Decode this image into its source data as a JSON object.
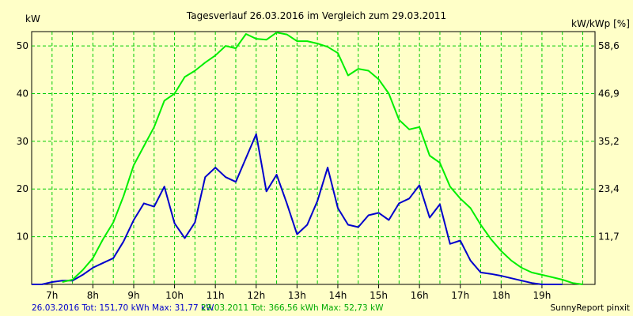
{
  "chart_data": {
    "type": "line",
    "title": "Tagesverlauf 26.03.2016 im Vergleich zum 29.03.2011",
    "ylabel_left": "kW",
    "ylabel_right": "kW/kWp [%]",
    "x_ticks": [
      "7h",
      "8h",
      "9h",
      "10h",
      "11h",
      "12h",
      "13h",
      "14h",
      "15h",
      "16h",
      "17h",
      "18h",
      "19h"
    ],
    "y_ticks_left": [
      "10",
      "20",
      "30",
      "40",
      "50"
    ],
    "y_ticks_right": [
      "11,7",
      "23,4",
      "35,2",
      "46,9",
      "58,6"
    ],
    "xlim": [
      6.5,
      20.3
    ],
    "ylim": [
      0,
      53
    ],
    "grid": true,
    "series": [
      {
        "name": "26.03.2016",
        "color": "#0000CC",
        "x": [
          6.5,
          6.75,
          7.0,
          7.25,
          7.5,
          7.75,
          8.0,
          8.25,
          8.5,
          8.75,
          9.0,
          9.25,
          9.5,
          9.75,
          10.0,
          10.25,
          10.5,
          10.75,
          11.0,
          11.25,
          11.5,
          11.75,
          12.0,
          12.25,
          12.5,
          12.75,
          13.0,
          13.25,
          13.5,
          13.75,
          14.0,
          14.25,
          14.5,
          14.75,
          15.0,
          15.25,
          15.5,
          15.75,
          16.0,
          16.25,
          16.5,
          16.75,
          17.0,
          17.25,
          17.5,
          17.75,
          18.0,
          18.25,
          18.5,
          18.75,
          19.0,
          19.25,
          19.5
        ],
        "y": [
          0,
          0,
          0.5,
          0.8,
          0.8,
          2.0,
          3.5,
          4.5,
          5.5,
          9.0,
          13.5,
          17.0,
          16.3,
          20.5,
          12.8,
          9.7,
          13.0,
          22.5,
          24.5,
          22.5,
          21.5,
          26.5,
          31.5,
          19.5,
          23.0,
          17.0,
          10.5,
          12.5,
          17.5,
          24.5,
          16.0,
          12.5,
          12.0,
          14.5,
          15.0,
          13.5,
          17.0,
          18.0,
          20.8,
          14.0,
          16.8,
          8.5,
          9.2,
          5.0,
          2.5,
          2.2,
          1.8,
          1.3,
          0.8,
          0.3,
          0,
          0,
          0
        ]
      },
      {
        "name": "29.03.2011",
        "color": "#00EE00",
        "x": [
          7.25,
          7.5,
          7.75,
          8.0,
          8.25,
          8.5,
          8.75,
          9.0,
          9.25,
          9.5,
          9.75,
          10.0,
          10.25,
          10.5,
          10.75,
          11.0,
          11.25,
          11.5,
          11.75,
          12.0,
          12.25,
          12.5,
          12.75,
          13.0,
          13.25,
          13.5,
          13.75,
          14.0,
          14.25,
          14.5,
          14.75,
          15.0,
          15.25,
          15.5,
          15.75,
          16.0,
          16.25,
          16.5,
          16.75,
          17.0,
          17.25,
          17.5,
          17.75,
          18.0,
          18.25,
          18.5,
          18.75,
          19.0,
          19.25,
          19.5,
          19.75,
          20.0
        ],
        "y": [
          0.5,
          1.0,
          3.0,
          5.5,
          9.5,
          13.0,
          18.5,
          25.0,
          29.0,
          33.0,
          38.5,
          40.0,
          43.5,
          44.8,
          46.5,
          48.0,
          50.0,
          49.5,
          52.5,
          51.5,
          51.3,
          52.8,
          52.4,
          51.0,
          51.0,
          50.5,
          49.8,
          48.5,
          43.8,
          45.2,
          44.8,
          43.0,
          40.0,
          34.5,
          32.5,
          33.0,
          27.0,
          25.5,
          20.5,
          18.0,
          16.0,
          12.5,
          9.5,
          7.0,
          5.0,
          3.5,
          2.5,
          2.0,
          1.5,
          1.0,
          0.3,
          0
        ]
      }
    ],
    "footer": {
      "blue_text": "26.03.2016 Tot: 151,70 kWh Max: 31,77 kW",
      "green_text": "29.03.2011 Tot: 366,56 kWh Max: 52,73 kW",
      "credit": "SunnyReport pinxit"
    }
  }
}
